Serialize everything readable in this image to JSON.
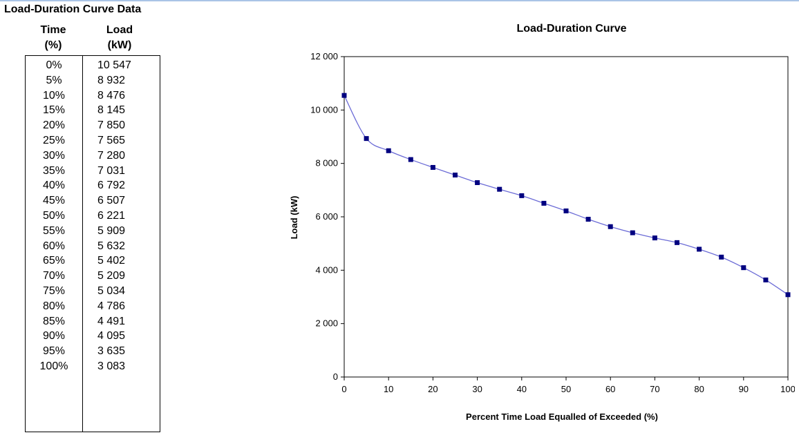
{
  "table": {
    "title": "Load-Duration Curve Data",
    "col_time": [
      "Time",
      "(%)"
    ],
    "col_load": [
      "Load",
      "(kW)"
    ],
    "rows": [
      [
        "0%",
        "10 547"
      ],
      [
        "5%",
        "8 932"
      ],
      [
        "10%",
        "8 476"
      ],
      [
        "15%",
        "8 145"
      ],
      [
        "20%",
        "7 850"
      ],
      [
        "25%",
        "7 565"
      ],
      [
        "30%",
        "7 280"
      ],
      [
        "35%",
        "7 031"
      ],
      [
        "40%",
        "6 792"
      ],
      [
        "45%",
        "6 507"
      ],
      [
        "50%",
        "6 221"
      ],
      [
        "55%",
        "5 909"
      ],
      [
        "60%",
        "5 632"
      ],
      [
        "65%",
        "5 402"
      ],
      [
        "70%",
        "5 209"
      ],
      [
        "75%",
        "5 034"
      ],
      [
        "80%",
        "4 786"
      ],
      [
        "85%",
        "4 491"
      ],
      [
        "90%",
        "4 095"
      ],
      [
        "95%",
        "3 635"
      ],
      [
        "100%",
        "3 083"
      ]
    ]
  },
  "chart_data": {
    "type": "line",
    "title": "Load-Duration Curve",
    "xlabel": "Percent Time Load Equalled of Exceeded (%)",
    "ylabel": "Load (kW)",
    "xlim": [
      0,
      100
    ],
    "ylim": [
      0,
      12000
    ],
    "x_ticks": [
      "0",
      "10",
      "20",
      "30",
      "40",
      "50",
      "60",
      "70",
      "80",
      "90",
      "100"
    ],
    "y_ticks": [
      "0",
      "2 000",
      "4 000",
      "6 000",
      "8 000",
      "10 000",
      "12 000"
    ],
    "grid": false,
    "smooth": true,
    "line_color": "#6b6bd6",
    "marker_color": "#000080",
    "x": [
      0,
      5,
      10,
      15,
      20,
      25,
      30,
      35,
      40,
      45,
      50,
      55,
      60,
      65,
      70,
      75,
      80,
      85,
      90,
      95,
      100
    ],
    "y": [
      10547,
      8932,
      8476,
      8145,
      7850,
      7565,
      7280,
      7031,
      6792,
      6507,
      6221,
      5909,
      5632,
      5402,
      5209,
      5034,
      4786,
      4491,
      4095,
      3635,
      3083
    ]
  }
}
